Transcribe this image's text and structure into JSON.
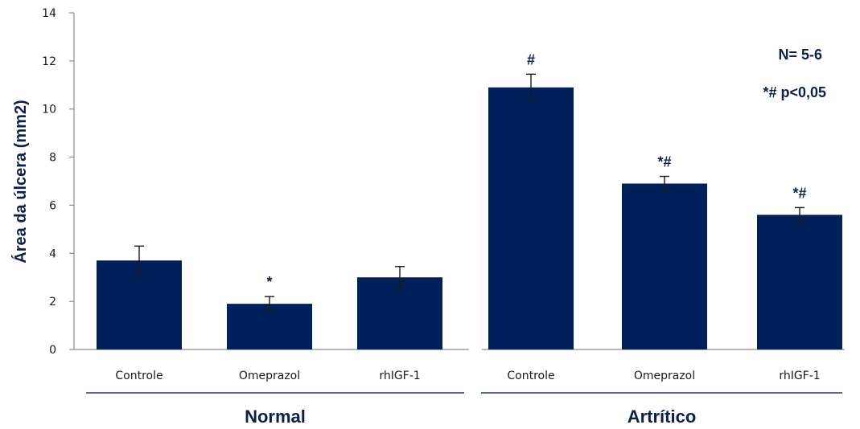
{
  "colors": {
    "bar": "#00205b",
    "axis": "#8c8c8c",
    "text": "#0c1f4e",
    "groupline": "#1f3a7a"
  },
  "chart_data": {
    "type": "bar",
    "ylabel": "Área da úlcera (mm2)",
    "ylim": [
      0,
      14
    ],
    "yticks": [
      0,
      2,
      4,
      6,
      8,
      10,
      12,
      14
    ],
    "grid": false,
    "groups": [
      {
        "name": "Normal",
        "categories": [
          "Controle",
          "Omeprazol",
          "rhIGF-1"
        ],
        "values": [
          3.7,
          1.9,
          3.0
        ],
        "errors": [
          0.6,
          0.3,
          0.45
        ],
        "significance": [
          "",
          "*",
          ""
        ]
      },
      {
        "name": "Artrítico",
        "categories": [
          "Controle",
          "Omeprazol",
          "rhIGF-1"
        ],
        "values": [
          10.9,
          6.9,
          5.6
        ],
        "errors": [
          0.55,
          0.3,
          0.3
        ],
        "significance": [
          "#",
          "*#",
          "*#"
        ]
      }
    ],
    "annotations": [
      "N= 5-6",
      "*# p<0,05"
    ]
  }
}
